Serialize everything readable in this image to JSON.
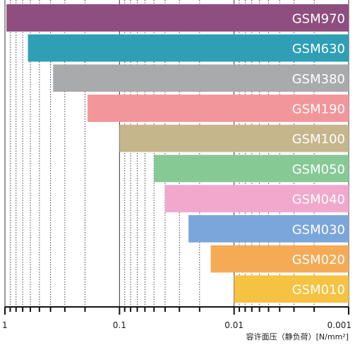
{
  "chart_data": {
    "type": "bar",
    "orientation": "horizontal",
    "x_scale": "log",
    "x_axis_reversed": true,
    "xlim": [
      1,
      0.001
    ],
    "xlabel": "容许面压（静负荷）[N/mm²]",
    "xticks": [
      {
        "value": 1,
        "label": "1"
      },
      {
        "value": 0.1,
        "label": "0.1"
      },
      {
        "value": 0.01,
        "label": "0.01"
      },
      {
        "value": 0.001,
        "label": "0.001"
      }
    ],
    "grid": true,
    "categories": [
      "GSM970",
      "GSM630",
      "GSM380",
      "GSM190",
      "GSM100",
      "GSM050",
      "GSM040",
      "GSM030",
      "GSM020",
      "GSM010"
    ],
    "values": [
      0.97,
      0.63,
      0.38,
      0.19,
      0.1,
      0.05,
      0.04,
      0.025,
      0.016,
      0.01
    ],
    "colors": [
      "#8e4e7e",
      "#2e9fb5",
      "#a9aaac",
      "#f2969a",
      "#c6b68c",
      "#87c994",
      "#f2a8cd",
      "#7ba6db",
      "#f5ab56",
      "#f5c242"
    ]
  }
}
